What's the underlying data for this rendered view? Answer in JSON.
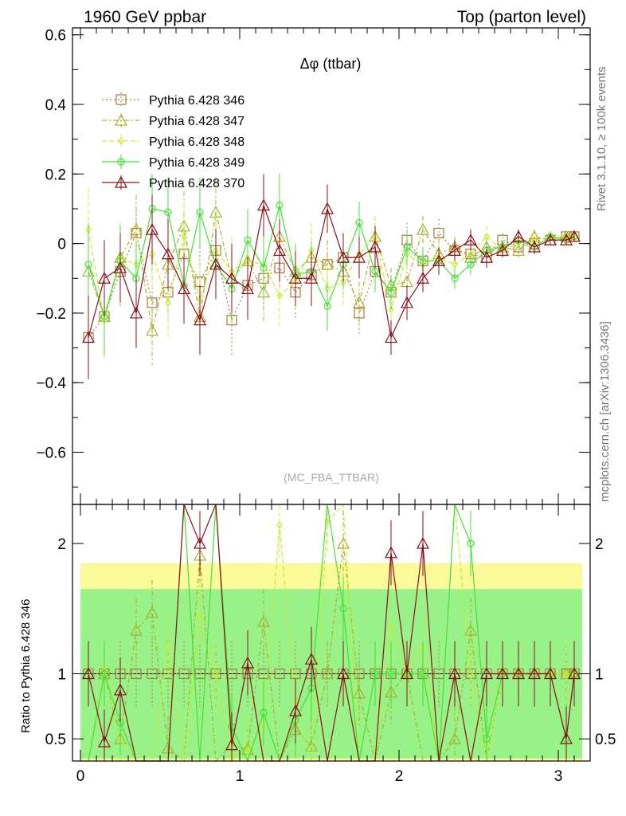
{
  "header": {
    "left_title": "1960 GeV ppbar",
    "right_title": "Top (parton level)"
  },
  "side_labels": {
    "rivet": "Rivet 3.1.10, ≥ 100k events",
    "mcplots": "mcplots.cern.ch [arXiv:1306.3436]"
  },
  "chart_data": {
    "type": "line",
    "title": "Δφ (ttbar)",
    "watermark": "(MC_FBA_TTBAR)",
    "ratio_ylabel": "Ratio to Pythia 6.428 346",
    "xlim": [
      -0.05,
      3.2
    ],
    "ylim": [
      -0.75,
      0.62
    ],
    "ratio_ylim": [
      0.33,
      2.3
    ],
    "xticks": [
      0,
      1,
      2,
      3
    ],
    "yticks": [
      0.6,
      0.4,
      0.2,
      0,
      -0.2,
      -0.4,
      -0.6
    ],
    "ytick_labels": [
      "0.6",
      "0.4",
      "0.2",
      "0",
      "−0.2",
      "−0.4",
      "−0.6"
    ],
    "ratio_yticks": [
      2,
      1,
      0.5
    ],
    "x": [
      0.05,
      0.15,
      0.25,
      0.35,
      0.45,
      0.55,
      0.65,
      0.75,
      0.85,
      0.95,
      1.05,
      1.15,
      1.25,
      1.35,
      1.45,
      1.55,
      1.65,
      1.75,
      1.85,
      1.95,
      2.05,
      2.15,
      2.25,
      2.35,
      2.45,
      2.55,
      2.65,
      2.75,
      2.85,
      2.95,
      3.05,
      3.1
    ],
    "series": [
      {
        "name": "Pythia 6.428 346",
        "color": "#a87a3c",
        "dash": "2,3",
        "marker": "square",
        "values": [
          -0.27,
          -0.21,
          -0.08,
          0.03,
          -0.17,
          -0.14,
          -0.03,
          -0.11,
          -0.02,
          -0.22,
          -0.12,
          -0.1,
          -0.07,
          -0.14,
          -0.09,
          -0.06,
          -0.04,
          -0.2,
          -0.08,
          -0.14,
          0.01,
          -0.05,
          0.03,
          -0.02,
          -0.03,
          -0.04,
          0.01,
          -0.01,
          0.0,
          0.01,
          0.02,
          0.02
        ]
      },
      {
        "name": "Pythia 6.428 347",
        "color": "#a8b02c",
        "dash": "6,3,2,3",
        "marker": "triangle",
        "values": [
          -0.08,
          -0.21,
          -0.04,
          0.04,
          -0.25,
          -0.06,
          0.05,
          -0.21,
          0.09,
          -0.1,
          -0.05,
          -0.14,
          0.02,
          -0.08,
          -0.04,
          -0.06,
          -0.08,
          -0.17,
          0.02,
          -0.12,
          -0.11,
          0.04,
          -0.03,
          -0.01,
          -0.04,
          -0.01,
          -0.01,
          -0.02,
          0.02,
          0.01,
          0.02,
          0.02
        ]
      },
      {
        "name": "Pythia 6.428 348",
        "color": "#c4ec34",
        "dash": "6,3",
        "marker": "diamond",
        "values": [
          0.04,
          -0.22,
          -0.04,
          -0.06,
          -0.03,
          -0.17,
          0.02,
          -0.16,
          -0.02,
          -0.08,
          -0.05,
          -0.06,
          -0.15,
          -0.11,
          -0.02,
          -0.13,
          -0.11,
          -0.03,
          0.02,
          -0.19,
          -0.03,
          -0.06,
          -0.04,
          -0.06,
          -0.03,
          0.02,
          -0.02,
          0.0,
          0.01,
          0.02,
          0.02,
          0.02
        ]
      },
      {
        "name": "Pythia 6.428 349",
        "color": "#44e034",
        "dash": "",
        "marker": "circle",
        "values": [
          -0.06,
          -0.21,
          -0.05,
          -0.1,
          0.1,
          0.09,
          -0.12,
          0.09,
          -0.06,
          -0.13,
          0.01,
          -0.07,
          0.11,
          -0.09,
          -0.08,
          -0.18,
          -0.06,
          0.06,
          -0.08,
          -0.14,
          -0.01,
          -0.05,
          -0.05,
          -0.1,
          -0.06,
          -0.02,
          -0.01,
          0.01,
          -0.01,
          0.02,
          0.01,
          0.02
        ]
      },
      {
        "name": "Pythia 6.428 370",
        "color": "#8b1018",
        "dash": "",
        "marker": "triangle",
        "values": [
          -0.27,
          -0.1,
          -0.07,
          -0.2,
          0.04,
          -0.03,
          -0.13,
          -0.22,
          -0.06,
          -0.1,
          -0.13,
          0.11,
          -0.02,
          -0.1,
          -0.1,
          0.1,
          -0.04,
          -0.04,
          -0.01,
          -0.27,
          -0.17,
          -0.1,
          -0.05,
          -0.02,
          0.01,
          -0.04,
          -0.02,
          0.02,
          -0.01,
          0.01,
          0.01,
          0.02
        ]
      }
    ],
    "errors": [
      0.12,
      0.11,
      0.1,
      0.1,
      0.1,
      0.1,
      0.1,
      0.1,
      0.1,
      0.1,
      0.09,
      0.09,
      0.09,
      0.08,
      0.08,
      0.07,
      0.07,
      0.06,
      0.06,
      0.05,
      0.05,
      0.04,
      0.04,
      0.03,
      0.03,
      0.03,
      0.02,
      0.02,
      0.02,
      0.015,
      0.015,
      0.015
    ],
    "ratio_band_inner": [
      0.65,
      0.65,
      0.65,
      0.65,
      0.65,
      0.65,
      0.65,
      0.65,
      0.65,
      0.65,
      0.65,
      0.65,
      0.65,
      0.65,
      0.65,
      0.65,
      0.65,
      0.65,
      0.65,
      0.65,
      0.65,
      0.65,
      0.65,
      0.65,
      0.65,
      0.65,
      0.65,
      0.65,
      0.65,
      0.65,
      0.65,
      0.65
    ],
    "ratio_band_outer": [
      0.85,
      0.85,
      0.85,
      0.85,
      0.85,
      0.85,
      0.85,
      0.85,
      0.85,
      0.85,
      0.85,
      0.85,
      0.85,
      0.85,
      0.85,
      0.85,
      0.85,
      0.85,
      0.85,
      0.85,
      0.85,
      0.85,
      0.85,
      0.85,
      0.85,
      0.85,
      0.85,
      0.85,
      0.85,
      0.85,
      0.85,
      0.85
    ],
    "colors": {
      "band_inner": "#99f288",
      "band_outer": "#fbfa9a",
      "axis": "#000000",
      "watermark": "#aaaaaa"
    },
    "legend_position": "top-left"
  }
}
